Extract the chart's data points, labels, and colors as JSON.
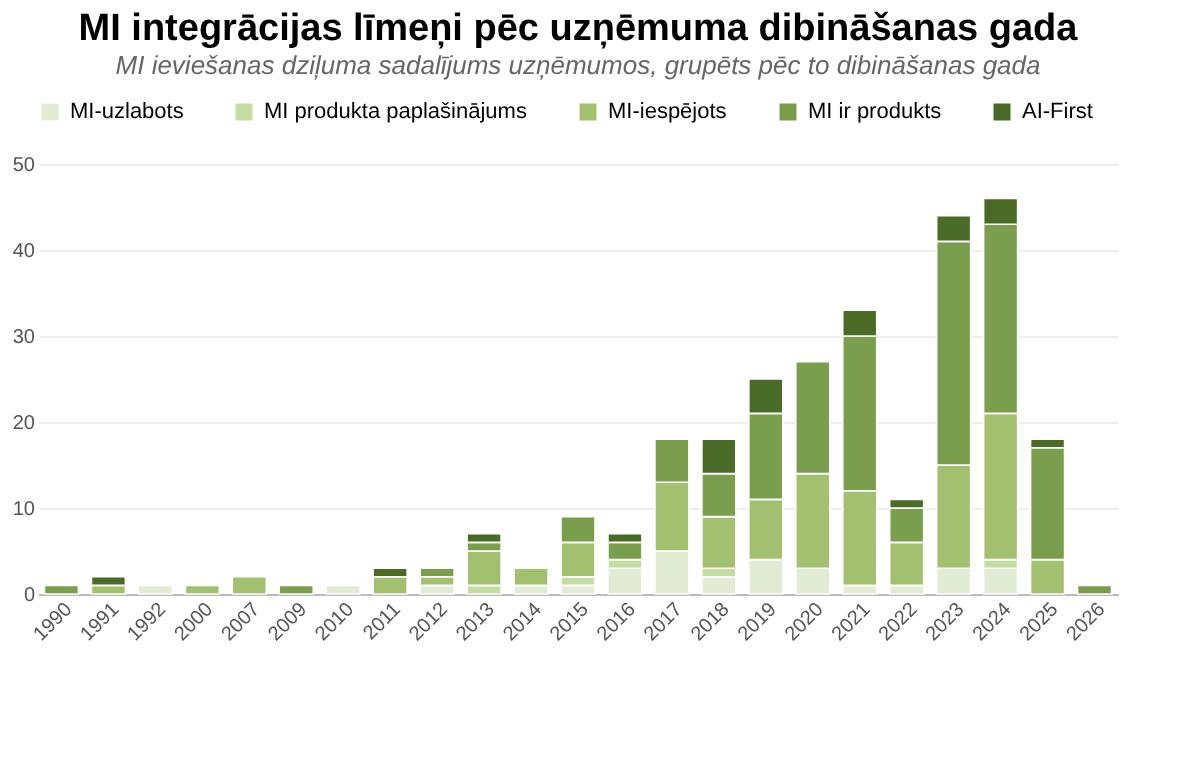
{
  "chart_data": {
    "type": "bar",
    "title": "MI integrācijas līmeņi pēc uzņēmuma dibināšanas gada",
    "subtitle": "MI ieviešanas dziļuma sadalījums uzņēmumos, grupēts pēc to dibināšanas gada",
    "categories": [
      "1990",
      "1991",
      "1992",
      "2000",
      "2007",
      "2009",
      "2010",
      "2011",
      "2012",
      "2013",
      "2014",
      "2015",
      "2016",
      "2017",
      "2018",
      "2019",
      "2020",
      "2021",
      "2022",
      "2023",
      "2024",
      "2025",
      "2026"
    ],
    "stacked": true,
    "ylim": [
      0,
      50
    ],
    "yticks": [
      0,
      10,
      20,
      30,
      40,
      50
    ],
    "grid": "y",
    "legend": "top",
    "series": [
      {
        "name": "MI-uzlabots",
        "color": "#e2ecd5",
        "values": [
          null,
          null,
          1,
          null,
          null,
          null,
          1,
          null,
          1,
          null,
          1,
          1,
          3,
          5,
          2,
          4,
          3,
          1,
          1,
          3,
          3,
          null,
          null
        ]
      },
      {
        "name": "MI produkta paplašinājums",
        "color": "#c5dca3",
        "values": [
          null,
          null,
          null,
          null,
          null,
          null,
          null,
          null,
          null,
          1,
          null,
          1,
          1,
          null,
          1,
          null,
          null,
          null,
          null,
          null,
          1,
          null,
          null
        ]
      },
      {
        "name": "MI-iespējots",
        "color": "#a3bf70",
        "values": [
          null,
          1,
          null,
          1,
          2,
          null,
          null,
          2,
          1,
          4,
          2,
          4,
          null,
          8,
          6,
          7,
          11,
          11,
          5,
          12,
          17,
          4,
          null
        ]
      },
      {
        "name": "MI ir produkts",
        "color": "#7a9e4d",
        "values": [
          1,
          null,
          null,
          null,
          null,
          1,
          null,
          null,
          1,
          1,
          null,
          3,
          2,
          5,
          5,
          10,
          13,
          18,
          4,
          26,
          22,
          13,
          1
        ]
      },
      {
        "name": "AI-First",
        "color": "#4a6a28",
        "values": [
          null,
          1,
          null,
          null,
          null,
          null,
          null,
          1,
          null,
          1,
          null,
          null,
          1,
          null,
          4,
          4,
          null,
          3,
          1,
          3,
          3,
          1,
          null
        ]
      }
    ]
  }
}
